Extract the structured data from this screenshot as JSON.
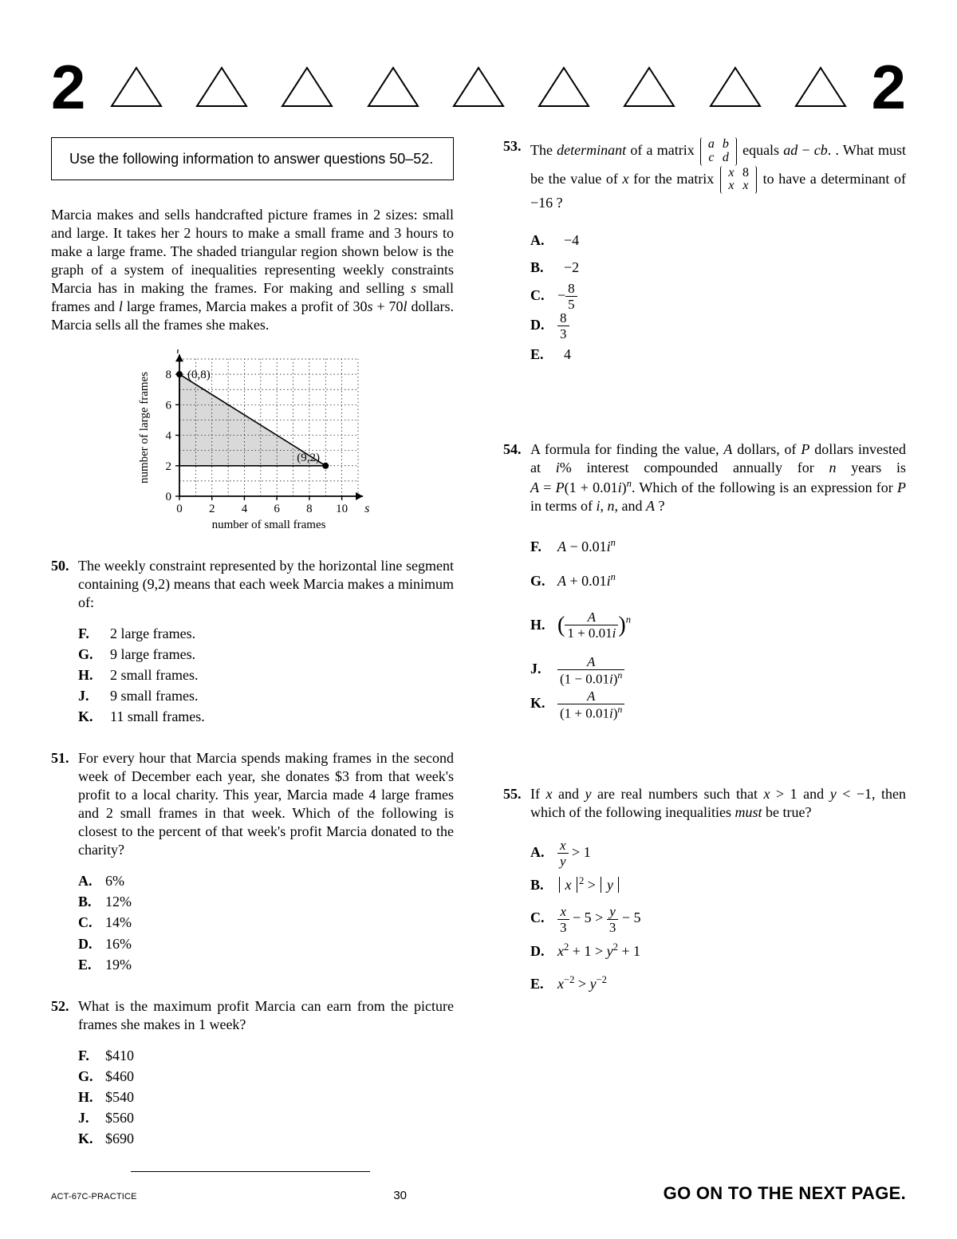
{
  "header": {
    "left_num": "2",
    "right_num": "2",
    "triangle_count": 9
  },
  "info_box": "Use the following information to answer questions 50–52.",
  "passage": "Marcia makes and sells handcrafted picture frames in 2 sizes: small and large. It takes her 2 hours to make a small frame and 3 hours to make a large frame. The shaded triangular region shown below is the graph of a system of inequalities representing weekly constraints Marcia has in making the frames. For making and selling s small frames and l large frames, Marcia makes a profit of 30s + 70l dollars. Marcia sells all the frames she makes.",
  "chart": {
    "type": "scatter_region",
    "x": {
      "label": "number of small frames",
      "var": "s",
      "min": 0,
      "max": 11,
      "ticks": [
        0,
        2,
        4,
        6,
        8,
        10
      ]
    },
    "y": {
      "label": "number of large frames",
      "var": "l",
      "min": 0,
      "max": 9,
      "ticks": [
        0,
        2,
        4,
        6,
        8
      ]
    },
    "shaded_vertices": [
      [
        0,
        2
      ],
      [
        0,
        8
      ],
      [
        9,
        2
      ]
    ],
    "labeled_points": [
      {
        "xy": [
          0,
          8
        ],
        "label": "(0,8)"
      },
      {
        "xy": [
          9,
          2
        ],
        "label": "(9,2)"
      }
    ],
    "colors": {
      "grid": "#000000",
      "fill": "#d9d9d9",
      "axis": "#000000",
      "point": "#000000"
    },
    "font_size_pt": 14
  },
  "q50": {
    "num": "50.",
    "stem": "The weekly constraint represented by the horizontal line segment containing (9,2) means that each week Marcia makes a minimum of:",
    "choices": [
      {
        "letter": "F.",
        "text": "2 large frames."
      },
      {
        "letter": "G.",
        "text": "9 large frames."
      },
      {
        "letter": "H.",
        "text": "2 small frames."
      },
      {
        "letter": "J.",
        "text": "9 small frames."
      },
      {
        "letter": "K.",
        "text": "11 small frames."
      }
    ]
  },
  "q51": {
    "num": "51.",
    "stem": "For every hour that Marcia spends making frames in the second week of December each year, she donates $3 from that week's profit to a local charity. This year, Marcia made 4 large frames and 2 small frames in that week. Which of the following is closest to the percent of that week's profit Marcia donated to the charity?",
    "choices": [
      {
        "letter": "A.",
        "text": "6%"
      },
      {
        "letter": "B.",
        "text": "12%"
      },
      {
        "letter": "C.",
        "text": "14%"
      },
      {
        "letter": "D.",
        "text": "16%"
      },
      {
        "letter": "E.",
        "text": "19%"
      }
    ]
  },
  "q52": {
    "num": "52.",
    "stem": "What is the maximum profit Marcia can earn from the picture frames she makes in 1 week?",
    "choices": [
      {
        "letter": "F.",
        "text": "$410"
      },
      {
        "letter": "G.",
        "text": "$460"
      },
      {
        "letter": "H.",
        "text": "$540"
      },
      {
        "letter": "J.",
        "text": "$560"
      },
      {
        "letter": "K.",
        "text": "$690"
      }
    ]
  },
  "q53": {
    "num": "53.",
    "stem_parts": {
      "p1": "The ",
      "p1b": "determinant",
      "p2": " of a matrix ",
      "m1": [
        [
          "a",
          "b"
        ],
        [
          "c",
          "d"
        ]
      ],
      "p3": " equals ",
      "expr1": "ad − cb",
      "p4": ". What must be the value of ",
      "xvar": "x",
      "p5": " for the matrix ",
      "m2": [
        [
          "x",
          "8"
        ],
        [
          "x",
          "x"
        ]
      ],
      "p6": " to have a determinant of −16 ?"
    },
    "choices": [
      {
        "letter": "A.",
        "html": "−4"
      },
      {
        "letter": "B.",
        "html": "−2"
      },
      {
        "letter": "C.",
        "frac": {
          "sign": "−",
          "num": "8",
          "den": "5"
        }
      },
      {
        "letter": "D.",
        "frac": {
          "sign": "",
          "num": "8",
          "den": "3"
        }
      },
      {
        "letter": "E.",
        "html": "4"
      }
    ]
  },
  "q54": {
    "num": "54.",
    "stem": "A formula for finding the value, A dollars, of P dollars invested at i% interest compounded annually for n years is A = P(1 + 0.01i)ⁿ. Which of the following is an expression for P in terms of i, n, and A ?",
    "choices": [
      {
        "letter": "F.",
        "expr": "A − 0.01iⁿ"
      },
      {
        "letter": "G.",
        "expr": "A + 0.01iⁿ"
      },
      {
        "letter": "H.",
        "big_frac": {
          "num": "A",
          "den": "1 + 0.01i",
          "paren_pow": "n"
        }
      },
      {
        "letter": "J.",
        "big_frac": {
          "num": "A",
          "den": "(1 − 0.01i)ⁿ"
        }
      },
      {
        "letter": "K.",
        "big_frac": {
          "num": "A",
          "den": "(1 + 0.01i)ⁿ"
        }
      }
    ]
  },
  "q55": {
    "num": "55.",
    "stem": "If x and y are real numbers such that x > 1 and y < −1, then which of the following inequalities must be true?",
    "choices_letters": [
      "A.",
      "B.",
      "C.",
      "D.",
      "E."
    ],
    "choices_html": [
      "frac_xy_gt1",
      "absx2_gt_absy",
      "x3m5_gt_y3m5",
      "x2p1_gt_y2p1",
      "xneg2_gt_yneg2"
    ]
  },
  "footer": {
    "doc_id": "ACT-67C-PRACTICE",
    "page_num": "30",
    "next": "GO ON TO THE NEXT PAGE."
  }
}
